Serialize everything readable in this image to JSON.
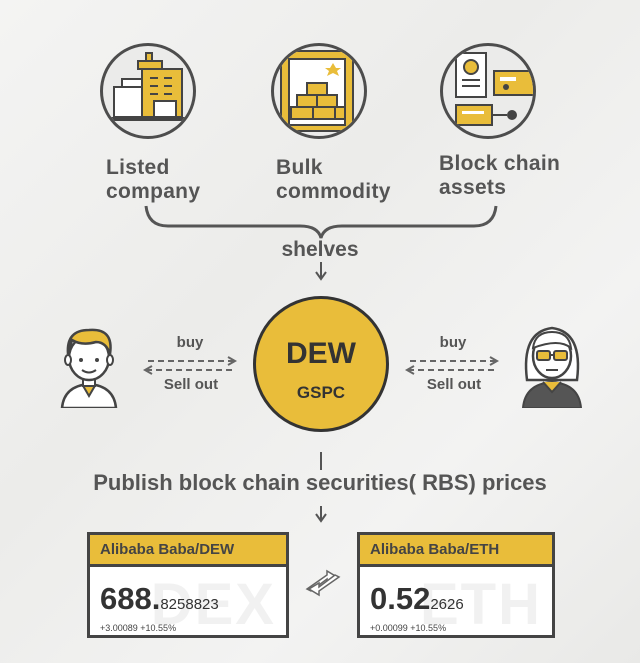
{
  "sources": [
    {
      "label_l1": "Listed",
      "label_l2": "company",
      "icon": "building-icon"
    },
    {
      "label_l1": "Bulk",
      "label_l2": "commodity",
      "icon": "gold-bars-icon"
    },
    {
      "label_l1": "Block chain",
      "label_l2": "assets",
      "icon": "documents-icon"
    }
  ],
  "shelves_label": "shelves",
  "center": {
    "title": "DEW",
    "subtitle": "GSPC"
  },
  "left_trade": {
    "buy": "buy",
    "sell": "Sell out"
  },
  "right_trade": {
    "buy": "buy",
    "sell": "Sell out"
  },
  "publish_label": "Publish block chain securities( RBS) prices",
  "cards": [
    {
      "pair": "Alibaba Baba/DEW",
      "price_main": "688.",
      "price_frac": "8258823",
      "change": "+3.00089 +10.55%",
      "watermark": "DEX"
    },
    {
      "pair": "Alibaba Baba/ETH",
      "price_main": "0.52",
      "price_frac": "2626",
      "change": "+0.00099 +10.55%",
      "watermark": "ETH"
    }
  ],
  "colors": {
    "accent": "#e9bd3a",
    "stroke": "#4d4d4d"
  }
}
